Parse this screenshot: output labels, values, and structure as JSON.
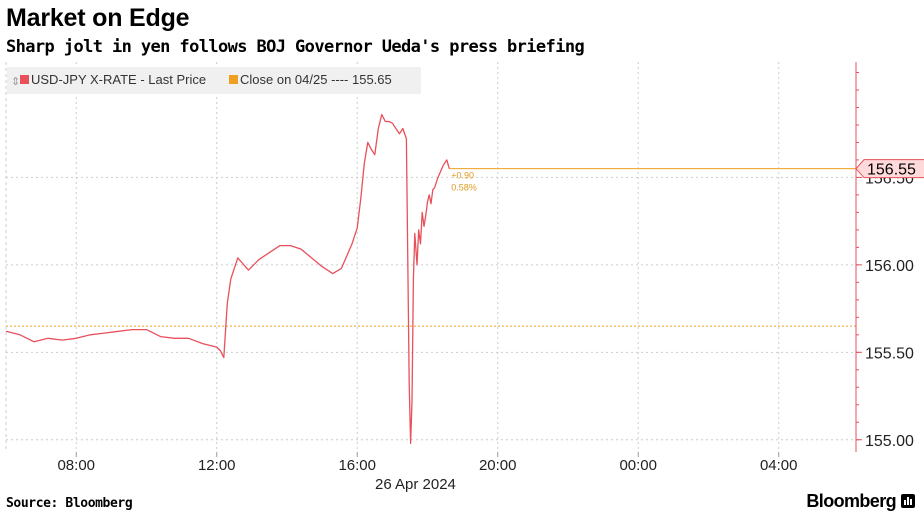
{
  "header": {
    "title": "Market on Edge",
    "subtitle": "Sharp jolt in yen follows BOJ Governor Ueda's press briefing"
  },
  "footer": {
    "source": "Source: Bloomberg",
    "brand": "Bloomberg",
    "brand_icon": "bar-chart-icon"
  },
  "colors": {
    "price_line": "#e8505b",
    "close_line": "#f0a020",
    "grid": "#cccccc",
    "right_axis": "#e8505b"
  },
  "chart_data": {
    "type": "line",
    "legend": [
      {
        "label": "USD-JPY X-RATE - Last Price",
        "color": "#e8505b"
      },
      {
        "label": "Close on 04/25 ---- 155.65",
        "color": "#f0a020"
      }
    ],
    "x_tick_labels": [
      "08:00",
      "12:00",
      "16:00",
      "20:00",
      "00:00",
      "04:00"
    ],
    "x_tick_hours": [
      8,
      12,
      16,
      20,
      24,
      28
    ],
    "x_range_hours": [
      6.0,
      30.2
    ],
    "date_label": "26 Apr 2024",
    "y_ticks": [
      155.0,
      155.5,
      156.0,
      156.5
    ],
    "y_tick_labels": [
      "155.00",
      "155.50",
      "156.00",
      "156.50"
    ],
    "y_range": [
      154.93,
      157.16
    ],
    "reference_line": {
      "value": 155.65,
      "label": "Close on 04/25"
    },
    "last_value": {
      "value": 156.55,
      "label": "156.55"
    },
    "change_annotation": {
      "change": "+0.90",
      "percent": "0.58%"
    },
    "series": [
      {
        "name": "USD-JPY X-RATE - Last Price",
        "x": [
          6.0,
          6.4,
          6.8,
          7.2,
          7.6,
          8.0,
          8.4,
          8.8,
          9.2,
          9.6,
          10.0,
          10.4,
          10.8,
          11.2,
          11.6,
          12.0,
          12.1,
          12.2,
          12.3,
          12.4,
          12.6,
          12.9,
          13.2,
          13.5,
          13.8,
          14.1,
          14.4,
          14.7,
          15.0,
          15.3,
          15.55,
          15.7,
          15.85,
          16.0,
          16.1,
          16.2,
          16.3,
          16.4,
          16.5,
          16.6,
          16.7,
          16.8,
          16.9,
          17.0,
          17.1,
          17.2,
          17.3,
          17.4,
          17.48,
          17.52,
          17.56,
          17.6,
          17.64,
          17.7,
          17.75,
          17.8,
          17.85,
          17.9,
          17.95,
          18.0,
          18.05,
          18.1,
          18.15,
          18.2,
          18.3,
          18.45,
          18.55,
          18.62
        ],
        "values": [
          155.62,
          155.6,
          155.56,
          155.58,
          155.57,
          155.58,
          155.6,
          155.61,
          155.62,
          155.63,
          155.63,
          155.59,
          155.58,
          155.58,
          155.55,
          155.53,
          155.51,
          155.47,
          155.78,
          155.92,
          156.04,
          155.97,
          156.03,
          156.07,
          156.11,
          156.11,
          156.09,
          156.04,
          155.99,
          155.95,
          155.98,
          156.05,
          156.12,
          156.21,
          156.38,
          156.58,
          156.7,
          156.66,
          156.63,
          156.78,
          156.86,
          156.82,
          156.82,
          156.81,
          156.78,
          156.75,
          156.78,
          156.72,
          155.32,
          154.98,
          155.22,
          155.92,
          156.18,
          156.0,
          156.2,
          156.12,
          156.3,
          156.22,
          156.28,
          156.36,
          156.4,
          156.35,
          156.43,
          156.44,
          156.5,
          156.57,
          156.6,
          156.55
        ]
      }
    ]
  }
}
